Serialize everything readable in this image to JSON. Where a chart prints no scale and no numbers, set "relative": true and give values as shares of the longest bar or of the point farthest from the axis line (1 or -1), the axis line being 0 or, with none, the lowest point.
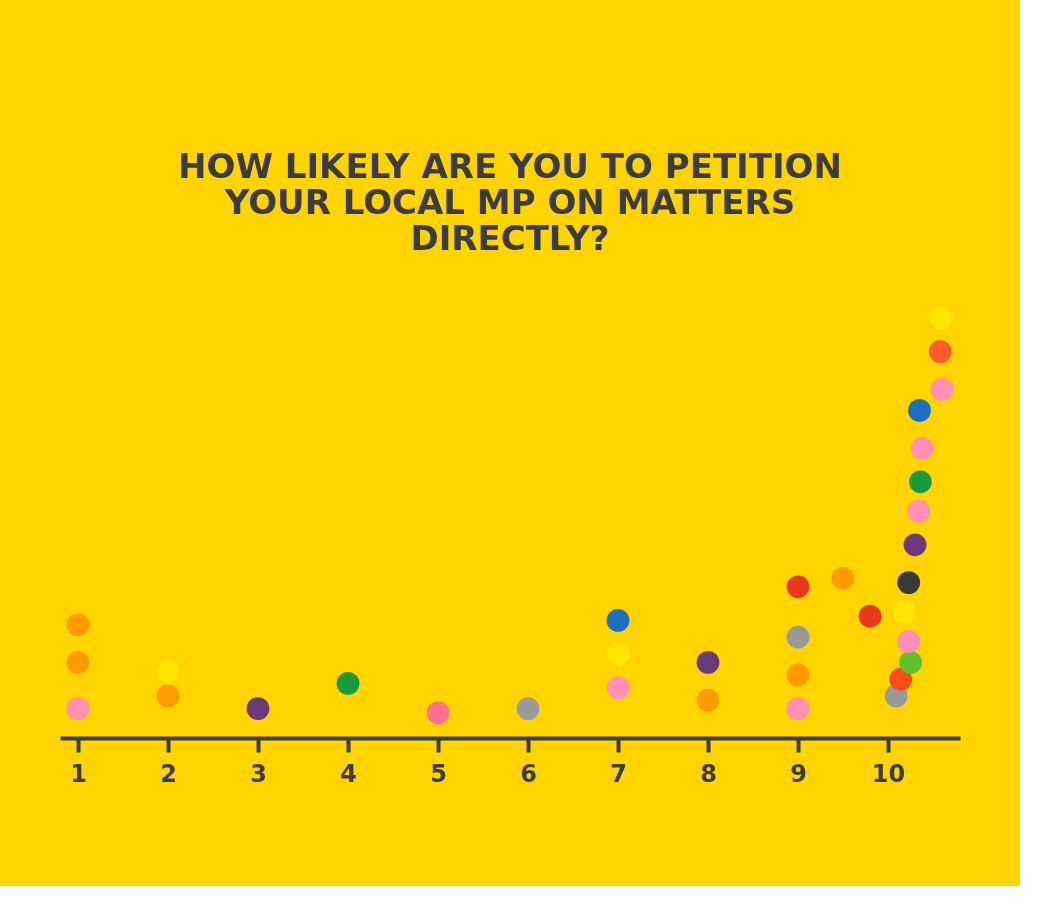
{
  "chart_data": {
    "type": "scatter",
    "title": "HOW LIKELY ARE YOU TO PETITION YOUR LOCAL MP ON MATTERS DIRECTLY?",
    "relative": true,
    "marker": "circle",
    "grid": false,
    "tick_labels": "x",
    "xlim": [
      0.8,
      10.8
    ],
    "xticks": [
      1,
      2,
      3,
      4,
      5,
      6,
      7,
      8,
      9,
      10
    ],
    "series": [
      {
        "x": [
          1,
          1,
          1,
          2,
          2,
          3,
          4,
          5,
          6,
          7,
          7,
          7,
          8,
          8,
          9,
          9,
          9,
          9,
          9.5,
          9.8,
          10.09,
          10.14,
          10.25,
          10.23,
          10.18,
          10.23,
          10.3,
          10.34,
          10.36,
          10.38,
          10.35,
          10.6,
          10.58,
          10.59
        ],
        "values": [
          0.27,
          0.18,
          0.07,
          0.16,
          0.1,
          0.07,
          0.13,
          0.06,
          0.07,
          0.28,
          0.2,
          0.12,
          0.18,
          0.09,
          0.36,
          0.24,
          0.15,
          0.07,
          0.38,
          0.29,
          0.1,
          0.14,
          0.18,
          0.23,
          0.3,
          0.37,
          0.46,
          0.54,
          0.61,
          0.69,
          0.78,
          0.83,
          0.92,
          1.0
        ],
        "colors": [
          "#ff9a00",
          "#ff9a00",
          "#ff8fb4",
          "#ffe600",
          "#ff9a00",
          "#6b3a7a",
          "#1a9a3c",
          "#ff6f8f",
          "#9a9a9a",
          "#1f6fc0",
          "#ffe600",
          "#ff8fb4",
          "#6b3a7a",
          "#ff9a00",
          "#e83a1a",
          "#9a9a9a",
          "#ff9a00",
          "#ff8fb4",
          "#ff9a00",
          "#e83a1a",
          "#9a9a9a",
          "#ff4a1a",
          "#5cc02a",
          "#ff8fb4",
          "#ffe600",
          "#3a3a3a",
          "#6b3a7a",
          "#ff8fb4",
          "#1a9a3c",
          "#ff8fb4",
          "#1f6fc0",
          "#ff8fb4",
          "#ff5a2a",
          "#ffe600"
        ]
      }
    ]
  }
}
